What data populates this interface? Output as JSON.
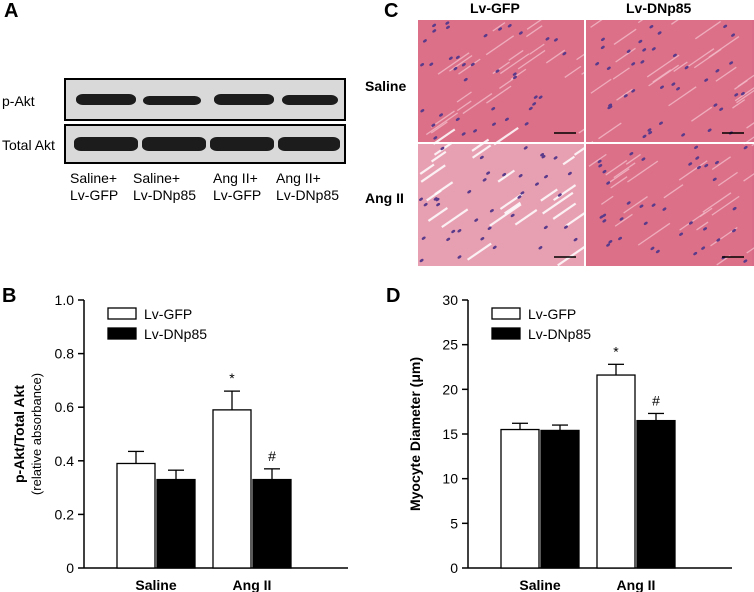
{
  "panels": {
    "a": {
      "letter": "A",
      "rows": [
        "p-Akt",
        "Total Akt"
      ],
      "lanes": [
        "Saline+\nLv-GFP",
        "Saline+\nLv-DNp85",
        "Ang II+\nLv-GFP",
        "Ang II+\nLv-DNp85"
      ]
    },
    "c": {
      "letter": "C",
      "columns": [
        "Lv-GFP",
        "Lv-DNp85"
      ],
      "rows": [
        "Saline",
        "Ang II"
      ]
    }
  },
  "chart_data": [
    {
      "letter": "B",
      "type": "bar",
      "categories": [
        "Saline",
        "Ang II"
      ],
      "series": [
        {
          "name": "Lv-GFP",
          "values": [
            0.39,
            0.59
          ],
          "errors": [
            0.045,
            0.07
          ],
          "fill": "#ffffff"
        },
        {
          "name": "Lv-DNp85",
          "values": [
            0.33,
            0.33
          ],
          "errors": [
            0.035,
            0.04
          ],
          "fill": "#000000"
        }
      ],
      "annotations": [
        {
          "category": "Ang II",
          "series": "Lv-GFP",
          "text": "*"
        },
        {
          "category": "Ang II",
          "series": "Lv-DNp85",
          "text": "#"
        }
      ],
      "ylabel": "p-Akt/Total Akt",
      "ylabel_sub": "(relative absorbance)",
      "ylim": [
        0,
        1.0
      ],
      "yticks": [
        "0",
        "0.2",
        "0.4",
        "0.6",
        "0.8",
        "1.0"
      ],
      "ytick_values": [
        0,
        0.2,
        0.4,
        0.6,
        0.8,
        1.0
      ],
      "legend_position": "top-left"
    },
    {
      "letter": "D",
      "type": "bar",
      "categories": [
        "Saline",
        "Ang II"
      ],
      "series": [
        {
          "name": "Lv-GFP",
          "values": [
            15.5,
            21.6
          ],
          "errors": [
            0.7,
            1.2
          ],
          "fill": "#ffffff"
        },
        {
          "name": "Lv-DNp85",
          "values": [
            15.4,
            16.5
          ],
          "errors": [
            0.6,
            0.8
          ],
          "fill": "#000000"
        }
      ],
      "annotations": [
        {
          "category": "Ang II",
          "series": "Lv-GFP",
          "text": "*"
        },
        {
          "category": "Ang II",
          "series": "Lv-DNp85",
          "text": "#"
        }
      ],
      "ylabel": "Myocyte Diameter (μm)",
      "ylim": [
        0,
        30
      ],
      "yticks": [
        "0",
        "5",
        "10",
        "15",
        "20",
        "25",
        "30"
      ],
      "ytick_values": [
        0,
        5,
        10,
        15,
        20,
        25,
        30
      ],
      "legend_position": "top-left"
    }
  ]
}
